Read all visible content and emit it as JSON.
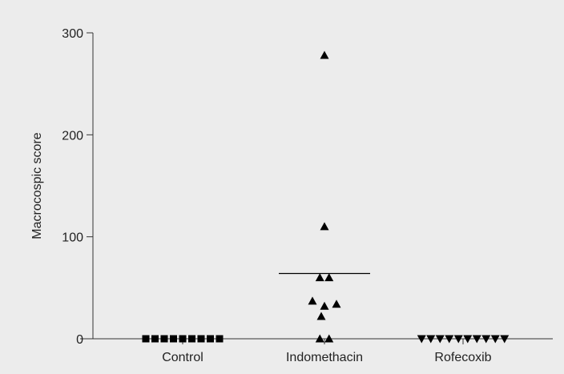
{
  "chart_data": {
    "type": "scatter",
    "title": "",
    "xlabel": "",
    "ylabel": "Macrocospic score",
    "ylim": [
      0,
      300
    ],
    "yticks": [
      0,
      100,
      200,
      300
    ],
    "grid": false,
    "categories": [
      "Control",
      "Indomethacin",
      "Rofecoxib"
    ],
    "series": [
      {
        "category": "Control",
        "marker": "square",
        "values": [
          0,
          0,
          0,
          0,
          0,
          0,
          0,
          0,
          0
        ],
        "mean": 0
      },
      {
        "category": "Indomethacin",
        "marker": "triangle-up",
        "values": [
          278,
          110,
          60,
          60,
          37,
          32,
          34,
          22,
          0,
          0
        ],
        "mean": 64
      },
      {
        "category": "Rofecoxib",
        "marker": "triangle-down",
        "values": [
          0,
          0,
          0,
          0,
          0,
          0,
          0,
          0,
          0,
          0
        ],
        "mean": 0
      }
    ],
    "colors": {
      "marker": "#000000",
      "axis": "#333333",
      "background": "#ececec"
    }
  }
}
